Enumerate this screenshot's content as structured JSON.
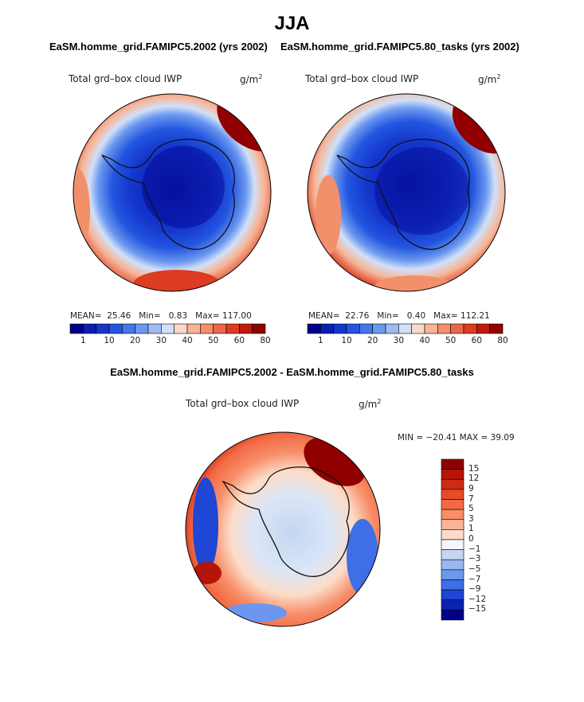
{
  "figure_title": "JJA",
  "colorbar_ticks": [
    "1",
    "10",
    "20",
    "30",
    "40",
    "50",
    "60",
    "80"
  ],
  "colorbar_colors": [
    "#00008c",
    "#0a1fae",
    "#1436cc",
    "#2356e0",
    "#4278ea",
    "#6b98ef",
    "#9fbaf2",
    "#d2e0f7",
    "#fbd9c9",
    "#f7b596",
    "#f2906b",
    "#ea6848",
    "#dc3c22",
    "#bf1a0c",
    "#900000"
  ],
  "panels": [
    {
      "subtitle": "EaSM.homme_grid.FAMIPC5.2002 (yrs 2002)",
      "variable": "Total grd–box cloud IWP",
      "units": "g/m",
      "units_exp": "2",
      "mean_label": "MEAN=",
      "mean_value": "25.46",
      "min_label": "Min=",
      "min_value": "0.83",
      "max_label": "Max=",
      "max_value": "117.00"
    },
    {
      "subtitle": "EaSM.homme_grid.FAMIPC5.80_tasks (yrs 2002)",
      "variable": "Total grd–box cloud IWP",
      "units": "g/m",
      "units_exp": "2",
      "mean_label": "MEAN=",
      "mean_value": "22.76",
      "min_label": "Min=",
      "min_value": "0.40",
      "max_label": "Max=",
      "max_value": "112.21"
    }
  ],
  "difference": {
    "subtitle": "EaSM.homme_grid.FAMIPC5.2002 - EaSM.homme_grid.FAMIPC5.80_tasks",
    "variable": "Total grd–box cloud IWP",
    "units": "g/m",
    "units_exp": "2",
    "minmax_text": "MIN = −20.41 MAX =  39.09",
    "colorbar_ticks": [
      "15",
      "12",
      "9",
      "7",
      "5",
      "3",
      "1",
      "0",
      "−1",
      "−3",
      "−5",
      "−7",
      "−9",
      "−12",
      "−15"
    ],
    "colorbar_colors": [
      "#900000",
      "#b41508",
      "#d02a14",
      "#e84a2a",
      "#f26a44",
      "#f78e68",
      "#fab594",
      "#fcdcc8",
      "#f3f6fb",
      "#c5d6f2",
      "#9ab8ef",
      "#6d97ee",
      "#3f6fe6",
      "#1f46d4",
      "#0a22b0",
      "#00008c"
    ]
  }
}
